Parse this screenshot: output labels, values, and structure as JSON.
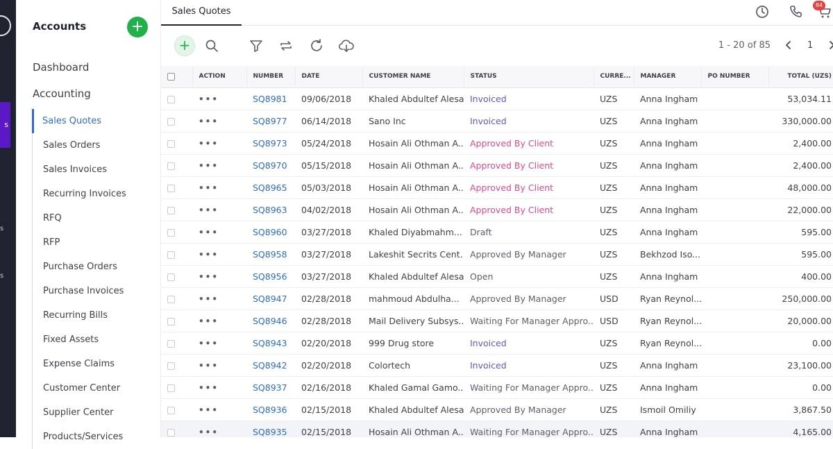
{
  "rail": {
    "active_label": "s",
    "frag1": "s",
    "frag2": "s"
  },
  "sidebar": {
    "title": "Accounts",
    "add_label": "+",
    "dashboard": "Dashboard",
    "accounting": "Accounting",
    "items": [
      "Sales Quotes",
      "Sales Orders",
      "Sales Invoices",
      "Recurring Invoices",
      "RFQ",
      "RFP",
      "Purchase Orders",
      "Purchase Invoices",
      "Recurring Bills",
      "Fixed Assets",
      "Expense Claims",
      "Customer Center",
      "Supplier Center",
      "Products/Services"
    ]
  },
  "topbar": {
    "tab": "Sales Quotes",
    "badge": "84"
  },
  "toolbar": {
    "add_label": "+",
    "range": "1 - 20 of 85",
    "page": "1"
  },
  "table": {
    "headers": [
      "Action",
      "Number",
      "Date",
      "Customer Name",
      "Status",
      "Curre...",
      "Manager",
      "PO Number",
      "Total (UZS)"
    ],
    "rows": [
      {
        "number": "SQ8981",
        "date": "09/06/2018",
        "customer": "Khaled Abdultef Alesa",
        "status": "Invoiced",
        "currency": "UZS",
        "manager": "Anna Ingham",
        "po": "",
        "total": "53,034.11"
      },
      {
        "number": "SQ8977",
        "date": "06/14/2018",
        "customer": "Sano Inc",
        "status": "Invoiced",
        "currency": "UZS",
        "manager": "Anna Ingham",
        "po": "",
        "total": "330,000.00"
      },
      {
        "number": "SQ8973",
        "date": "05/24/2018",
        "customer": "Hosain Ali Othman A...",
        "status": "Approved By Client",
        "currency": "UZS",
        "manager": "Anna Ingham",
        "po": "",
        "total": "2,400.00"
      },
      {
        "number": "SQ8970",
        "date": "05/15/2018",
        "customer": "Hosain Ali Othman A...",
        "status": "Approved By Client",
        "currency": "UZS",
        "manager": "Anna Ingham",
        "po": "",
        "total": "2,400.00"
      },
      {
        "number": "SQ8965",
        "date": "05/03/2018",
        "customer": "Hosain Ali Othman A...",
        "status": "Approved By Client",
        "currency": "UZS",
        "manager": "Anna Ingham",
        "po": "",
        "total": "48,000.00"
      },
      {
        "number": "SQ8963",
        "date": "04/02/2018",
        "customer": "Hosain Ali Othman A...",
        "status": "Approved By Client",
        "currency": "UZS",
        "manager": "Anna Ingham",
        "po": "",
        "total": "22,000.00"
      },
      {
        "number": "SQ8960",
        "date": "03/27/2018",
        "customer": "Khaled Diyabmahm...",
        "status": "Draft",
        "currency": "UZS",
        "manager": "Anna Ingham",
        "po": "",
        "total": "595.00"
      },
      {
        "number": "SQ8958",
        "date": "03/27/2018",
        "customer": "Lakeshit Secrits Cent...",
        "status": "Approved By Manager",
        "currency": "UZS",
        "manager": "Bekhzod Iso...",
        "po": "",
        "total": "595.00"
      },
      {
        "number": "SQ8956",
        "date": "03/27/2018",
        "customer": "Khaled Abdultef Alesa",
        "status": "Open",
        "currency": "UZS",
        "manager": "Anna Ingham",
        "po": "",
        "total": "400.00"
      },
      {
        "number": "SQ8947",
        "date": "02/28/2018",
        "customer": "mahmoud Abdulha...",
        "status": "Approved By Manager",
        "currency": "USD",
        "manager": "Ryan Reynol...",
        "po": "",
        "total": "250,000.00"
      },
      {
        "number": "SQ8946",
        "date": "02/28/2018",
        "customer": "Mail Delivery Subsys...",
        "status": "Waiting For Manager Appro...",
        "currency": "USD",
        "manager": "Ryan Reynol...",
        "po": "",
        "total": "20,000.00"
      },
      {
        "number": "SQ8943",
        "date": "02/20/2018",
        "customer": "999 Drug store",
        "status": "Invoiced",
        "currency": "UZS",
        "manager": "Ryan Reynol...",
        "po": "",
        "total": "0.00"
      },
      {
        "number": "SQ8942",
        "date": "02/20/2018",
        "customer": "Colortech",
        "status": "Invoiced",
        "currency": "UZS",
        "manager": "Anna Ingham",
        "po": "",
        "total": "23,100.00"
      },
      {
        "number": "SQ8937",
        "date": "02/16/2018",
        "customer": "Khaled Gamal Gamo...",
        "status": "Waiting For Manager Appro...",
        "currency": "UZS",
        "manager": "Anna Ingham",
        "po": "",
        "total": "0.00"
      },
      {
        "number": "SQ8936",
        "date": "02/15/2018",
        "customer": "Khaled Abdultef Alesa",
        "status": "Approved By Manager",
        "currency": "UZS",
        "manager": "Ismoil Omiliy",
        "po": "",
        "total": "3,867.50"
      },
      {
        "number": "SQ8935",
        "date": "02/15/2018",
        "customer": "Hosain Ali Othman A...",
        "status": "Waiting For Manager Appro...",
        "currency": "UZS",
        "manager": "Anna Ingham",
        "po": "",
        "total": "4,165.00"
      }
    ]
  }
}
